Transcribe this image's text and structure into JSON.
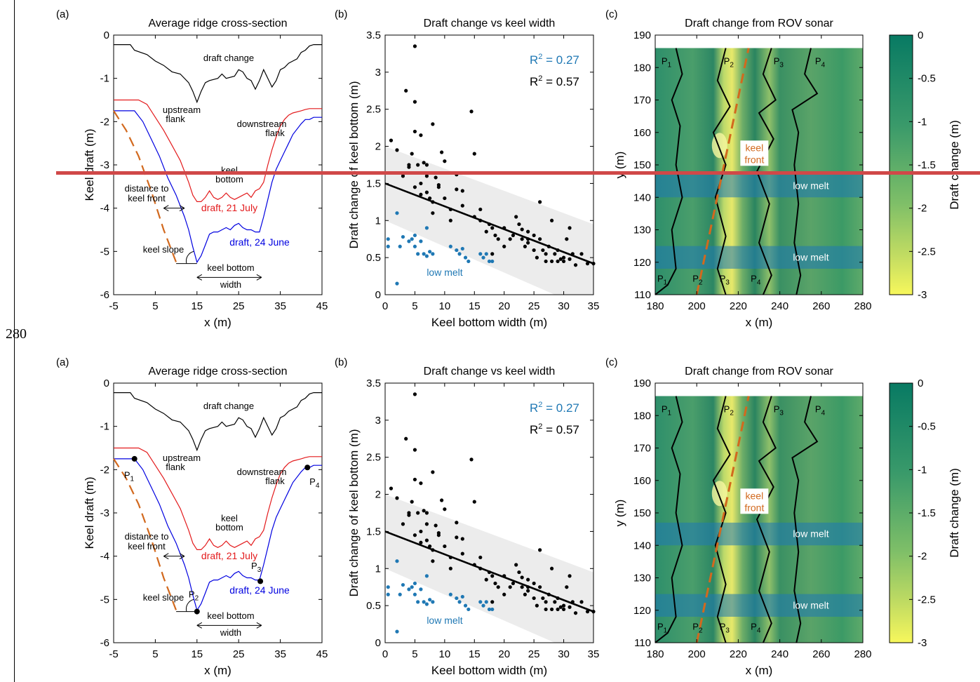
{
  "page_number": "280",
  "marker_color": "#d04848",
  "colors": {
    "red": "#e31a1c",
    "blue": "#0000e0",
    "orange": "#d2691e",
    "lowmelt": "#1f78b4",
    "keelfront": "#d2691e",
    "cmap_top": "#0b7a5e",
    "cmap_bottom": "#f6f65a"
  },
  "figures": [
    {
      "a": {
        "label": "(a)",
        "title": "Average ridge cross-section",
        "xlabel": "x (m)",
        "ylabel": "Keel draft (m)",
        "xticks": [
          "-5",
          "5",
          "15",
          "25",
          "35",
          "45"
        ],
        "yticks": [
          "0",
          "-1",
          "-2",
          "-3",
          "-4",
          "-5",
          "-6"
        ],
        "ann": {
          "draft_change": "draft change",
          "upstream": "upstream",
          "flank": "flank",
          "downstream": "downstream",
          "flank2": "flank",
          "keel": "keel",
          "bottom": "bottom",
          "dist1": "distance to",
          "dist2": "keel front",
          "draft21": "draft, 21 July",
          "draft24": "draft, 24 June",
          "keel_slope": "keel slope",
          "kb1": "keel bottom",
          "kb2": "width"
        },
        "points": []
      },
      "b": {
        "label": "(b)",
        "title": "Draft change vs keel width",
        "xlabel": "Keel bottom width (m)",
        "ylabel": "Draft change of keel bottom (m)",
        "xticks": [
          "0",
          "5",
          "10",
          "15",
          "20",
          "25",
          "30",
          "35"
        ],
        "yticks": [
          "0",
          "0.5",
          "1",
          "1.5",
          "2",
          "2.5",
          "3",
          "3.5"
        ],
        "r2_blue": "0.27",
        "r2_black": "0.57",
        "lowmelt": "low melt"
      },
      "c": {
        "label": "(c)",
        "title": "Draft change from ROV sonar",
        "xlabel": "x (m)",
        "ylabel": "y (m)",
        "xticks": [
          "180",
          "200",
          "220",
          "240",
          "260",
          "280"
        ],
        "yticks": [
          "110",
          "120",
          "130",
          "140",
          "150",
          "160",
          "170",
          "180",
          "190"
        ],
        "cbar_ticks": [
          "0",
          "-0.5",
          "-1",
          "-1.5",
          "-2",
          "-2.5",
          "-3"
        ],
        "cbar_label": "Draft change (m)",
        "keel1": "keel",
        "keel2": "front",
        "lowmelt1": "low melt",
        "lowmelt2": "low melt",
        "ptop": [
          "P",
          "1",
          "P",
          "2",
          "P",
          "3",
          "P",
          "4"
        ]
      }
    },
    {
      "a": {
        "label": "(a)",
        "title": "Average ridge cross-section",
        "xlabel": "x (m)",
        "ylabel": "Keel draft (m)",
        "xticks": [
          "-5",
          "5",
          "15",
          "25",
          "35",
          "45"
        ],
        "yticks": [
          "0",
          "-1",
          "-2",
          "-3",
          "-4",
          "-5",
          "-6"
        ],
        "ann": {
          "draft_change": "draft change",
          "upstream": "upstream",
          "flank": "flank",
          "downstream": "downstream",
          "flank2": "flank",
          "keel": "keel",
          "bottom": "bottom",
          "dist1": "distance to",
          "dist2": "keel front",
          "draft21": "draft, 21 July",
          "draft24": "draft, 24 June",
          "keel_slope": "keel slope",
          "kb1": "keel bottom",
          "kb2": "width"
        },
        "points": [
          "P",
          "1",
          "P",
          "2",
          "P",
          "3",
          "P",
          "4"
        ]
      },
      "b": {
        "label": "(b)",
        "title": "Draft change vs keel width",
        "xlabel": "Keel bottom width (m)",
        "ylabel": "Draft change of keel bottom (m)",
        "xticks": [
          "0",
          "5",
          "10",
          "15",
          "20",
          "25",
          "30",
          "35"
        ],
        "yticks": [
          "0",
          "0.5",
          "1",
          "1.5",
          "2",
          "2.5",
          "3",
          "3.5"
        ],
        "r2_blue": "0.27",
        "r2_black": "0.57",
        "lowmelt": "low melt"
      },
      "c": {
        "label": "(c)",
        "title": "Draft change from ROV sonar",
        "xlabel": "x (m)",
        "ylabel": "y (m)",
        "xticks": [
          "180",
          "200",
          "220",
          "240",
          "260",
          "280"
        ],
        "yticks": [
          "110",
          "120",
          "130",
          "140",
          "150",
          "160",
          "170",
          "180",
          "190"
        ],
        "cbar_ticks": [
          "0",
          "-0.5",
          "-1",
          "-1.5",
          "-2",
          "-2.5",
          "-3"
        ],
        "cbar_label": "Draft change (m)",
        "keel1": "keel",
        "keel2": "front",
        "lowmelt1": "low melt",
        "lowmelt2": "low melt",
        "ptop": [
          "P",
          "1",
          "P",
          "2",
          "P",
          "3",
          "P",
          "4"
        ]
      }
    }
  ],
  "chart_data": [
    {
      "type": "line",
      "title": "Average ridge cross-section",
      "xlabel": "x (m)",
      "ylabel": "Keel draft (m)",
      "xlim": [
        -5,
        45
      ],
      "ylim": [
        -6,
        0
      ],
      "series": [
        {
          "name": "draft change",
          "x": [
            -5,
            -1,
            0,
            3,
            5,
            7,
            9,
            11,
            13,
            14,
            15,
            16,
            17,
            18,
            20,
            21,
            22,
            24,
            25,
            26,
            27,
            28,
            29,
            30,
            31,
            32,
            33,
            34,
            35,
            36,
            37,
            38,
            39,
            40,
            41,
            42,
            43,
            45
          ],
          "y": [
            -0.22,
            -0.22,
            -0.35,
            -0.45,
            -0.6,
            -0.7,
            -0.85,
            -0.9,
            -1.1,
            -1.3,
            -1.55,
            -1.3,
            -1.1,
            -1.05,
            -1.0,
            -0.9,
            -1.0,
            -0.95,
            -0.8,
            -0.85,
            -1.0,
            -1.05,
            -1.25,
            -1.05,
            -0.8,
            -1.0,
            -1.2,
            -1.05,
            -0.8,
            -0.75,
            -0.65,
            -0.6,
            -0.55,
            -0.4,
            -0.35,
            -0.25,
            -0.22,
            -0.22
          ]
        },
        {
          "name": "draft, 21 July",
          "x": [
            -5,
            1,
            3,
            5,
            7,
            9,
            11,
            13,
            14,
            15,
            16,
            17,
            18,
            19,
            20,
            21,
            22,
            23,
            24,
            25,
            26,
            27,
            28,
            29,
            30,
            31,
            32,
            33,
            34,
            35,
            36,
            37,
            38,
            40,
            41,
            42,
            45
          ],
          "y": [
            -1.5,
            -1.5,
            -1.6,
            -1.9,
            -2.2,
            -2.55,
            -2.9,
            -3.4,
            -3.7,
            -3.85,
            -3.85,
            -3.75,
            -3.6,
            -3.75,
            -3.8,
            -3.75,
            -3.65,
            -3.75,
            -3.8,
            -3.75,
            -3.7,
            -3.65,
            -3.75,
            -3.6,
            -3.55,
            -3.4,
            -3.0,
            -2.65,
            -2.35,
            -2.1,
            -1.95,
            -1.85,
            -1.8,
            -1.75,
            -1.72,
            -1.7,
            -1.7
          ]
        },
        {
          "name": "draft, 24 June",
          "x": [
            -5,
            0,
            2,
            4,
            6,
            8,
            10,
            12,
            13,
            14,
            15,
            16,
            17,
            18,
            19,
            20,
            21,
            22,
            23,
            24,
            25,
            26,
            27,
            28,
            29,
            30,
            31,
            32,
            33,
            34,
            35,
            36,
            37,
            38,
            40,
            41,
            42,
            43,
            45
          ],
          "y": [
            -1.75,
            -1.75,
            -2.0,
            -2.4,
            -2.8,
            -3.3,
            -3.7,
            -4.2,
            -4.5,
            -4.9,
            -5.25,
            -5.1,
            -4.85,
            -4.6,
            -4.55,
            -4.55,
            -4.5,
            -4.45,
            -4.5,
            -4.4,
            -4.35,
            -4.45,
            -4.5,
            -4.5,
            -4.55,
            -4.55,
            -4.2,
            -3.8,
            -3.4,
            -3.1,
            -2.9,
            -2.7,
            -2.5,
            -2.3,
            -2.05,
            -1.95,
            -1.95,
            -1.9,
            -1.9
          ]
        },
        {
          "name": "distance to keel front (dashed)",
          "x": [
            -5,
            -2,
            1,
            4,
            7,
            9,
            10
          ],
          "y": [
            -1.75,
            -2.2,
            -2.8,
            -3.6,
            -4.5,
            -5.0,
            -5.25
          ]
        }
      ]
    },
    {
      "type": "scatter",
      "title": "Draft change vs keel width",
      "xlabel": "Keel bottom width (m)",
      "ylabel": "Draft change of keel bottom (m)",
      "xlim": [
        0,
        35
      ],
      "ylim": [
        0,
        3.5
      ],
      "series": [
        {
          "name": "black",
          "x": [
            1,
            2,
            3,
            3.5,
            4,
            4.5,
            5,
            5,
            5,
            5.5,
            6,
            6,
            6.5,
            7,
            7,
            7,
            7.5,
            8,
            8,
            8.5,
            9,
            9.5,
            10,
            10,
            11,
            12,
            12,
            13,
            14.5,
            15,
            15,
            16,
            17,
            17.5,
            18,
            18.5,
            19,
            20,
            20,
            21,
            21.5,
            22,
            22.5,
            23,
            23.5,
            24,
            24,
            25,
            25,
            25.5,
            26,
            26,
            26.5,
            27,
            27.5,
            28,
            28.5,
            29,
            29,
            29.5,
            30,
            30,
            30.5,
            31,
            31,
            31.5,
            32,
            33,
            34,
            35,
            4,
            5,
            6,
            8,
            9,
            11,
            13,
            16,
            18,
            23,
            24,
            27,
            28
          ],
          "y": [
            2.08,
            1.95,
            1.6,
            2.75,
            1.75,
            1.9,
            2.2,
            2.6,
            3.35,
            1.75,
            1.35,
            2.15,
            1.78,
            1.38,
            1.6,
            1.75,
            1.3,
            2.3,
            1.25,
            1.58,
            1.48,
            1.92,
            1.8,
            1.3,
            1.15,
            1.62,
            1.42,
            1.4,
            2.47,
            1.9,
            1.05,
            1.0,
            0.85,
            0.95,
            0.9,
            0.8,
            0.75,
            0.9,
            0.65,
            0.75,
            0.8,
            1.05,
            0.95,
            0.75,
            0.65,
            0.85,
            0.7,
            0.8,
            0.6,
            0.5,
            1.25,
            0.75,
            0.6,
            0.55,
            0.65,
            1.0,
            0.55,
            0.45,
            0.6,
            0.48,
            0.5,
            0.45,
            0.75,
            0.9,
            0.48,
            0.55,
            0.4,
            0.55,
            0.42,
            0.42,
            1.72,
            1.45,
            1.5,
            1.1,
            1.45,
            1.0,
            1.2,
            1.15,
            0.55,
            0.88,
            0.75,
            0.45,
            0.45
          ]
        },
        {
          "name": "low melt",
          "x": [
            0.5,
            0.5,
            2,
            2,
            2.5,
            3,
            4,
            4.5,
            5,
            5,
            5.5,
            6,
            6.5,
            7,
            7,
            7.5,
            8,
            11,
            12,
            12.5,
            13,
            13.5,
            14,
            16,
            16.5,
            17,
            17.5,
            18
          ],
          "y": [
            0.75,
            0.65,
            1.1,
            0.15,
            0.65,
            0.78,
            0.72,
            0.75,
            0.8,
            0.65,
            0.55,
            0.72,
            0.55,
            0.9,
            0.52,
            0.58,
            0.55,
            0.65,
            0.6,
            0.55,
            0.62,
            0.5,
            0.45,
            0.55,
            0.5,
            0.55,
            0.45,
            0.45
          ]
        },
        {
          "name": "regression",
          "x": [
            0,
            35
          ],
          "y": [
            1.5,
            0.42
          ]
        }
      ]
    },
    {
      "type": "heatmap",
      "title": "Draft change from ROV sonar",
      "xlabel": "x (m)",
      "ylabel": "y (m)",
      "xlim": [
        180,
        280
      ],
      "ylim": [
        110,
        190
      ],
      "colorbar": {
        "label": "Draft change (m)",
        "range": [
          -3,
          0
        ]
      },
      "low_melt_bands": [
        [
          140,
          147
        ],
        [
          118,
          125
        ]
      ],
      "keel_front": {
        "x": [
          200,
          225
        ],
        "y": [
          110,
          186
        ]
      }
    }
  ]
}
